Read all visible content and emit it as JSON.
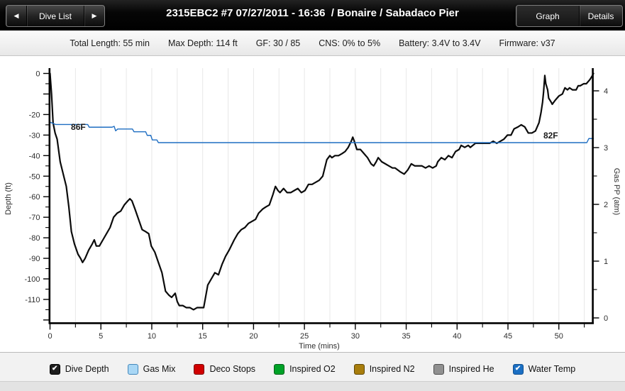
{
  "titlebar": {
    "nav": {
      "prev_icon": "◀",
      "label": "Dive List",
      "next_icon": "▶"
    },
    "title": "2315EBC2 #7 07/27/2011 - 16:36  / Bonaire / Sabadaco Pier",
    "views": [
      {
        "label": "Graph",
        "selected": true
      },
      {
        "label": "Details",
        "selected": false
      }
    ]
  },
  "stats_bar": {
    "items": [
      {
        "label": "Total Length:",
        "value": "55 min"
      },
      {
        "label": "Max Depth:",
        "value": "114 ft"
      },
      {
        "label": "GF:",
        "value": "30 / 85"
      },
      {
        "label": "CNS:",
        "value": "0% to 5%"
      },
      {
        "label": "Battery:",
        "value": "3.4V to 3.4V"
      },
      {
        "label": "Firmware:",
        "value": "v37"
      }
    ]
  },
  "chart_data": {
    "type": "line",
    "xlabel": "Time (mins)",
    "ylabel_left": "Depth (ft)",
    "ylabel_right": "Gas PP (atm)",
    "xlim": [
      0,
      53.4
    ],
    "ylim_left": [
      0,
      -121
    ],
    "ylim_right": [
      0,
      4.5
    ],
    "grid": "vertical-minor",
    "x_major_ticks": [
      0,
      5,
      10,
      15,
      20,
      25,
      30,
      35,
      40,
      45,
      50
    ],
    "x_minor_ticks": [
      2.5,
      7.5,
      12.5,
      17.5,
      22.5,
      27.5,
      32.5,
      37.5,
      42.5,
      47.5,
      52.5
    ],
    "x_gridlines": [
      2.5,
      5,
      7.5,
      10,
      12.5,
      15,
      17.5,
      20,
      22.5,
      25,
      27.5,
      30,
      32.5,
      35,
      37.5,
      40,
      42.5,
      45,
      47.5,
      50,
      52.5
    ],
    "left_labeled_ticks": [
      0,
      -20,
      -30,
      -40,
      -50,
      -60,
      -70,
      -80,
      -90,
      -100,
      -110
    ],
    "left_unlabeled_major_ticks": [
      -10,
      -120
    ],
    "left_minor_ticks": [
      -5,
      -15,
      -25,
      -35,
      -45,
      -55,
      -65,
      -75,
      -85,
      -95,
      -105,
      -115
    ],
    "right_labeled_ticks": [
      0,
      1,
      2,
      3,
      4
    ],
    "right_minor_ticks": [
      0.5,
      1.5,
      2.5,
      3.5
    ],
    "series": [
      {
        "name": "Dive Depth",
        "units": "ft",
        "color": "#0b0b0b",
        "width": 2.2,
        "points": [
          [
            0,
            0
          ],
          [
            0.15,
            -10
          ],
          [
            0.3,
            -24
          ],
          [
            0.5,
            -29
          ],
          [
            0.7,
            -32
          ],
          [
            1,
            -43
          ],
          [
            1.3,
            -49
          ],
          [
            1.6,
            -55
          ],
          [
            1.85,
            -65
          ],
          [
            2.1,
            -77
          ],
          [
            2.4,
            -83
          ],
          [
            2.75,
            -88
          ],
          [
            3,
            -90
          ],
          [
            3.2,
            -92
          ],
          [
            3.45,
            -90
          ],
          [
            3.8,
            -86
          ],
          [
            4.15,
            -83
          ],
          [
            4.35,
            -81
          ],
          [
            4.55,
            -84
          ],
          [
            4.85,
            -84
          ],
          [
            5.2,
            -81
          ],
          [
            5.55,
            -78
          ],
          [
            5.9,
            -75
          ],
          [
            6.25,
            -70
          ],
          [
            6.6,
            -68
          ],
          [
            6.95,
            -67
          ],
          [
            7.3,
            -64
          ],
          [
            7.65,
            -62
          ],
          [
            7.85,
            -61
          ],
          [
            8.05,
            -62
          ],
          [
            8.35,
            -66
          ],
          [
            8.7,
            -71
          ],
          [
            9.05,
            -76
          ],
          [
            9.4,
            -77
          ],
          [
            9.7,
            -78
          ],
          [
            9.95,
            -84
          ],
          [
            10.3,
            -87
          ],
          [
            10.65,
            -92
          ],
          [
            11,
            -97
          ],
          [
            11.35,
            -106
          ],
          [
            11.7,
            -108
          ],
          [
            11.95,
            -109
          ],
          [
            12.3,
            -107
          ],
          [
            12.5,
            -111
          ],
          [
            12.7,
            -113
          ],
          [
            13.05,
            -113
          ],
          [
            13.4,
            -114
          ],
          [
            13.75,
            -114
          ],
          [
            14.1,
            -115
          ],
          [
            14.45,
            -114
          ],
          [
            14.8,
            -114
          ],
          [
            15.1,
            -114
          ],
          [
            15.5,
            -103
          ],
          [
            15.85,
            -100
          ],
          [
            16.2,
            -97
          ],
          [
            16.55,
            -98
          ],
          [
            16.9,
            -93
          ],
          [
            17.25,
            -89
          ],
          [
            17.6,
            -86
          ],
          [
            18.1,
            -81
          ],
          [
            18.45,
            -78
          ],
          [
            18.8,
            -76
          ],
          [
            19.15,
            -75
          ],
          [
            19.5,
            -73
          ],
          [
            19.85,
            -72
          ],
          [
            20.2,
            -71
          ],
          [
            20.5,
            -68
          ],
          [
            20.9,
            -66
          ],
          [
            21.2,
            -65
          ],
          [
            21.55,
            -64
          ],
          [
            21.9,
            -59
          ],
          [
            22.15,
            -55
          ],
          [
            22.4,
            -57
          ],
          [
            22.6,
            -58
          ],
          [
            22.95,
            -56
          ],
          [
            23.3,
            -58
          ],
          [
            23.65,
            -58
          ],
          [
            24,
            -57
          ],
          [
            24.35,
            -56
          ],
          [
            24.7,
            -58
          ],
          [
            25.05,
            -57
          ],
          [
            25.4,
            -54
          ],
          [
            25.75,
            -54
          ],
          [
            26.1,
            -53
          ],
          [
            26.45,
            -52
          ],
          [
            26.8,
            -50
          ],
          [
            27,
            -46
          ],
          [
            27.2,
            -42
          ],
          [
            27.5,
            -40
          ],
          [
            27.7,
            -41
          ],
          [
            28,
            -40
          ],
          [
            28.35,
            -40
          ],
          [
            28.7,
            -39
          ],
          [
            29,
            -38
          ],
          [
            29.3,
            -36
          ],
          [
            29.6,
            -33
          ],
          [
            29.75,
            -31
          ],
          [
            29.9,
            -33
          ],
          [
            30.15,
            -37
          ],
          [
            30.5,
            -37
          ],
          [
            30.85,
            -39
          ],
          [
            31.2,
            -41
          ],
          [
            31.55,
            -44
          ],
          [
            31.8,
            -45
          ],
          [
            32.05,
            -43
          ],
          [
            32.25,
            -41
          ],
          [
            32.6,
            -43
          ],
          [
            32.95,
            -44
          ],
          [
            33.3,
            -45
          ],
          [
            33.65,
            -46
          ],
          [
            33.9,
            -46
          ],
          [
            34.45,
            -48
          ],
          [
            34.8,
            -49
          ],
          [
            35.15,
            -47
          ],
          [
            35.5,
            -44
          ],
          [
            35.85,
            -45
          ],
          [
            36.2,
            -45
          ],
          [
            36.55,
            -45
          ],
          [
            36.9,
            -46
          ],
          [
            37.25,
            -45
          ],
          [
            37.6,
            -46
          ],
          [
            37.95,
            -45
          ],
          [
            38.1,
            -43
          ],
          [
            38.45,
            -41
          ],
          [
            38.8,
            -42
          ],
          [
            39.15,
            -40
          ],
          [
            39.5,
            -41
          ],
          [
            39.85,
            -38
          ],
          [
            40.2,
            -37
          ],
          [
            40.4,
            -35
          ],
          [
            40.75,
            -36
          ],
          [
            41.1,
            -35
          ],
          [
            41.3,
            -36
          ],
          [
            41.8,
            -34
          ],
          [
            42.15,
            -34
          ],
          [
            42.5,
            -34
          ],
          [
            42.85,
            -34
          ],
          [
            43.2,
            -34
          ],
          [
            43.55,
            -33
          ],
          [
            43.9,
            -34
          ],
          [
            44.25,
            -33
          ],
          [
            44.6,
            -32
          ],
          [
            44.95,
            -30
          ],
          [
            45.3,
            -30
          ],
          [
            45.6,
            -27
          ],
          [
            46,
            -26
          ],
          [
            46.3,
            -25
          ],
          [
            46.65,
            -26
          ],
          [
            47,
            -29
          ],
          [
            47.35,
            -29
          ],
          [
            47.7,
            -28
          ],
          [
            48.05,
            -24
          ],
          [
            48.25,
            -19
          ],
          [
            48.4,
            -14
          ],
          [
            48.5,
            -9
          ],
          [
            48.62,
            -1
          ],
          [
            48.72,
            -5
          ],
          [
            48.9,
            -8
          ],
          [
            49,
            -12
          ],
          [
            49.25,
            -14
          ],
          [
            49.35,
            -15
          ],
          [
            49.65,
            -13
          ],
          [
            50,
            -11
          ],
          [
            50.35,
            -10
          ],
          [
            50.6,
            -7
          ],
          [
            50.85,
            -8
          ],
          [
            51.05,
            -7
          ],
          [
            51.35,
            -8
          ],
          [
            51.7,
            -8
          ],
          [
            51.9,
            -6
          ],
          [
            52.1,
            -6
          ],
          [
            52.45,
            -5
          ],
          [
            52.7,
            -5
          ],
          [
            53.05,
            -3
          ],
          [
            53.3,
            -1
          ],
          [
            53.4,
            0
          ]
        ]
      },
      {
        "name": "Water Temp",
        "units": "F",
        "color": "#1f6ec2",
        "width": 1.4,
        "points": [
          [
            0,
            86.5
          ],
          [
            0.55,
            86
          ],
          [
            3.7,
            86
          ],
          [
            3.85,
            85.4
          ],
          [
            6.1,
            85.4
          ],
          [
            6.3,
            85.6
          ],
          [
            6.45,
            84.6
          ],
          [
            6.65,
            85
          ],
          [
            8.1,
            85
          ],
          [
            8.25,
            84.4
          ],
          [
            9.4,
            84.4
          ],
          [
            9.55,
            83.6
          ],
          [
            9.9,
            83.6
          ],
          [
            10.05,
            82.6
          ],
          [
            10.5,
            82.6
          ],
          [
            10.65,
            82
          ],
          [
            52.75,
            82
          ],
          [
            52.95,
            82.9
          ],
          [
            53.4,
            82.9
          ]
        ]
      }
    ],
    "annotations": [
      {
        "text": "86F",
        "t": 2.06,
        "f": 84.8
      },
      {
        "text": "82F",
        "t": 48.48,
        "f": 82.94
      }
    ]
  },
  "legend": {
    "check_glyph": "✔",
    "items": [
      {
        "label": "Dive Depth",
        "color": "#1e1e1e",
        "border": "#000000",
        "checked": true
      },
      {
        "label": "Gas Mix",
        "color": "#a9d7f5",
        "border": "#4488bb",
        "checked": false
      },
      {
        "label": "Deco Stops",
        "color": "#d10000",
        "border": "#7a0000",
        "checked": false
      },
      {
        "label": "Inspired O2",
        "color": "#00a227",
        "border": "#015e17",
        "checked": false
      },
      {
        "label": "Inspired N2",
        "color": "#a87d0c",
        "border": "#5f4706",
        "checked": false
      },
      {
        "label": "Inspired He",
        "color": "#909090",
        "border": "#4f4f4f",
        "checked": false
      },
      {
        "label": "Water Temp",
        "color": "#1b6fc3",
        "border": "#11508f",
        "checked": true
      }
    ]
  }
}
